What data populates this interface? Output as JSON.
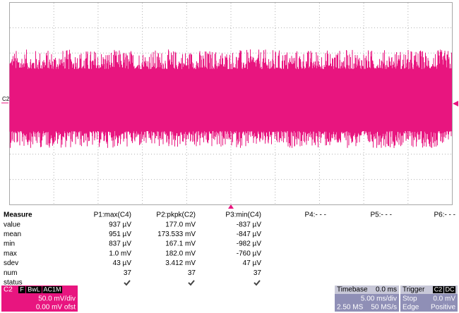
{
  "trace_label": "C2",
  "measurement": {
    "title": "Measure",
    "columns": [
      "P1:max(C4)",
      "P2:pkpk(C2)",
      "P3:min(C4)",
      "P4:- - -",
      "P5:- - -",
      "P6:- - -"
    ],
    "rows": [
      {
        "label": "value",
        "cells": [
          "937 µV",
          "177.0 mV",
          "-837 µV"
        ]
      },
      {
        "label": "mean",
        "cells": [
          "951 µV",
          "173.533 mV",
          "-847 µV"
        ]
      },
      {
        "label": "min",
        "cells": [
          "837 µV",
          "167.1 mV",
          "-982 µV"
        ]
      },
      {
        "label": "max",
        "cells": [
          "1.0 mV",
          "182.0 mV",
          "-760 µV"
        ]
      },
      {
        "label": "sdev",
        "cells": [
          "43 µV",
          "3.412 mV",
          "47 µV"
        ]
      },
      {
        "label": "num",
        "cells": [
          "37",
          "37",
          "37"
        ]
      },
      {
        "label": "status"
      }
    ]
  },
  "channel": {
    "name": "C2",
    "flags": [
      "F",
      "BwL",
      "AC1M"
    ],
    "scale": "50.0 mV/div",
    "offset": "0.00 mV ofst"
  },
  "timebase": {
    "title": "Timebase",
    "delay": "0.0 ms",
    "scale": "5.00 ms/div",
    "samples": "2.50 MS",
    "rate": "50 MS/s"
  },
  "trigger": {
    "title": "Trigger",
    "source": "C2",
    "coupling": "DC",
    "mode": "Stop",
    "level": "0.0 mV",
    "type": "Edge",
    "slope": "Positive"
  }
}
